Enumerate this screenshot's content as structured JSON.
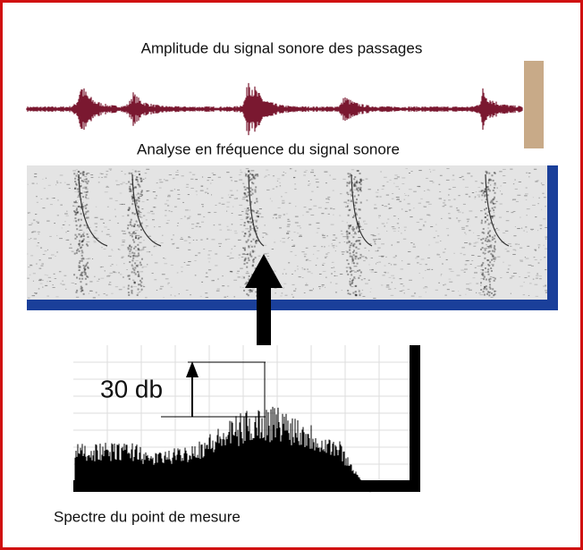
{
  "figure": {
    "waveform_title": "Amplitude du signal sonore des passages",
    "spectrogram_title": "Analyse en fréquence du signal sonore",
    "level_annotation": "30 db",
    "spectrum_caption": "Spectre du point de mesure"
  }
}
